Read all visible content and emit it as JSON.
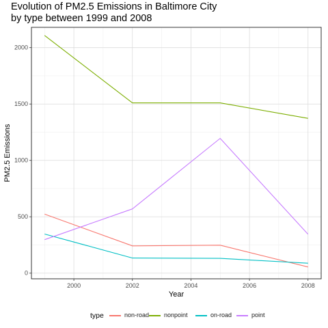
{
  "chart_data": {
    "type": "line",
    "title": "Evolution of PM2.5 Emissions in Baltimore City\nby type between 1999 and 2008",
    "xlabel": "Year",
    "ylabel": "PM2.5 Emissions",
    "x": [
      1999,
      2002,
      2005,
      2008
    ],
    "xticks": [
      2000,
      2002,
      2004,
      2006,
      2008
    ],
    "yticks": [
      0,
      500,
      1000,
      1500,
      2000
    ],
    "xlim": [
      1998.55,
      2008.45
    ],
    "ylim": [
      -50,
      2180
    ],
    "grid": true,
    "legend_title": "type",
    "legend_position": "bottom",
    "series": [
      {
        "name": "non-road",
        "color": "#F8766D",
        "values": [
          523,
          242,
          248,
          55
        ]
      },
      {
        "name": "nonpoint",
        "color": "#7CAE00",
        "values": [
          2108,
          1510,
          1510,
          1373
        ]
      },
      {
        "name": "on-road",
        "color": "#00BFC4",
        "values": [
          347,
          134,
          131,
          88
        ]
      },
      {
        "name": "point",
        "color": "#C77CFF",
        "values": [
          297,
          570,
          1195,
          345
        ]
      }
    ]
  }
}
